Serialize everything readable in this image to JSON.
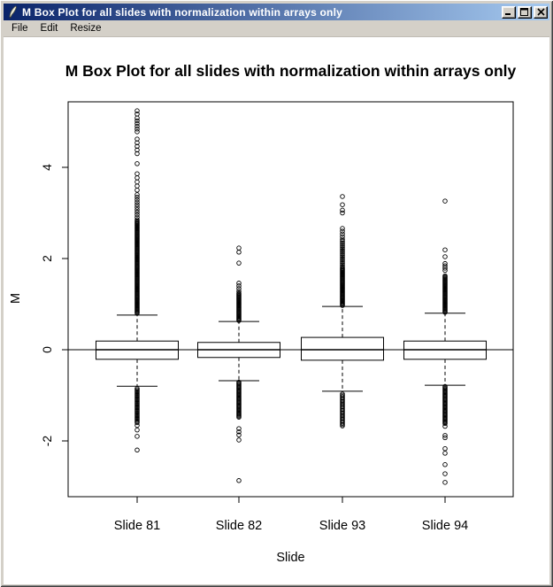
{
  "window": {
    "title": "M Box Plot for all slides with normalization within arrays only",
    "icon": "quill-icon",
    "controls": [
      "minimize",
      "maximize",
      "close"
    ]
  },
  "menu": {
    "items": [
      "File",
      "Edit",
      "Resize"
    ]
  },
  "colors": {
    "titlebar_left": "#0a246a",
    "titlebar_right": "#a6caf0",
    "chrome": "#d4d0c8",
    "client_bg": "#ffffff",
    "plot_fg": "#000000"
  },
  "chart_data": {
    "type": "boxplot",
    "title": "M Box Plot for all slides with normalization within arrays only",
    "xlabel": "Slide",
    "ylabel": "M",
    "ylim": [
      -3.2,
      5.4
    ],
    "yticks": [
      -2,
      0,
      2,
      4
    ],
    "grid": false,
    "reference_line_y": 0,
    "categories": [
      "Slide 81",
      "Slide 82",
      "Slide 93",
      "Slide 94"
    ],
    "note": "outlier entries are single M values or dense bands encoded as [from,to,step]",
    "series": [
      {
        "name": "Slide 81",
        "q1": -0.21,
        "median": 0.0,
        "q3": 0.19,
        "whisker_low": -0.8,
        "whisker_high": 0.76,
        "outliers_high": [
          5.24,
          5.17,
          [
            4.78,
            5.08,
            0.06
          ],
          [
            4.3,
            4.68,
            0.08
          ],
          4.08,
          [
            3.5,
            3.88,
            0.09
          ],
          [
            2.85,
            3.42,
            0.055
          ],
          [
            0.8,
            2.82,
            0.02
          ]
        ],
        "outliers_low": [
          [
            -1.6,
            -0.84,
            0.025
          ],
          -1.66,
          -1.76,
          -1.9,
          -2.2
        ]
      },
      {
        "name": "Slide 82",
        "q1": -0.17,
        "median": 0.0,
        "q3": 0.16,
        "whisker_low": -0.68,
        "whisker_high": 0.62,
        "outliers_high": [
          2.23,
          2.14,
          1.9,
          [
            1.28,
            1.48,
            0.06
          ],
          [
            0.64,
            1.24,
            0.02
          ]
        ],
        "outliers_low": [
          [
            -1.48,
            -0.7,
            0.022
          ],
          -1.73,
          -1.8,
          -1.87,
          -1.98,
          -2.87
        ]
      },
      {
        "name": "Slide 93",
        "q1": -0.23,
        "median": 0.0,
        "q3": 0.27,
        "whisker_low": -0.91,
        "whisker_high": 0.95,
        "outliers_high": [
          3.36,
          3.18,
          3.06,
          3.0,
          [
            2.42,
            2.7,
            0.06
          ],
          [
            1.82,
            2.38,
            0.035
          ],
          [
            0.97,
            1.8,
            0.02
          ]
        ],
        "outliers_low": [
          [
            -1.67,
            -0.95,
            0.028
          ]
        ]
      },
      {
        "name": "Slide 94",
        "q1": -0.21,
        "median": 0.0,
        "q3": 0.19,
        "whisker_low": -0.78,
        "whisker_high": 0.8,
        "outliers_high": [
          3.26,
          2.19,
          2.04,
          [
            1.74,
            1.9,
            0.05
          ],
          [
            0.82,
            1.62,
            0.02
          ]
        ],
        "outliers_low": [
          [
            -1.62,
            -0.8,
            0.022
          ],
          -1.68,
          -1.88,
          -1.93,
          -2.17,
          -2.27,
          -2.52,
          -2.72,
          -2.91
        ]
      }
    ]
  }
}
